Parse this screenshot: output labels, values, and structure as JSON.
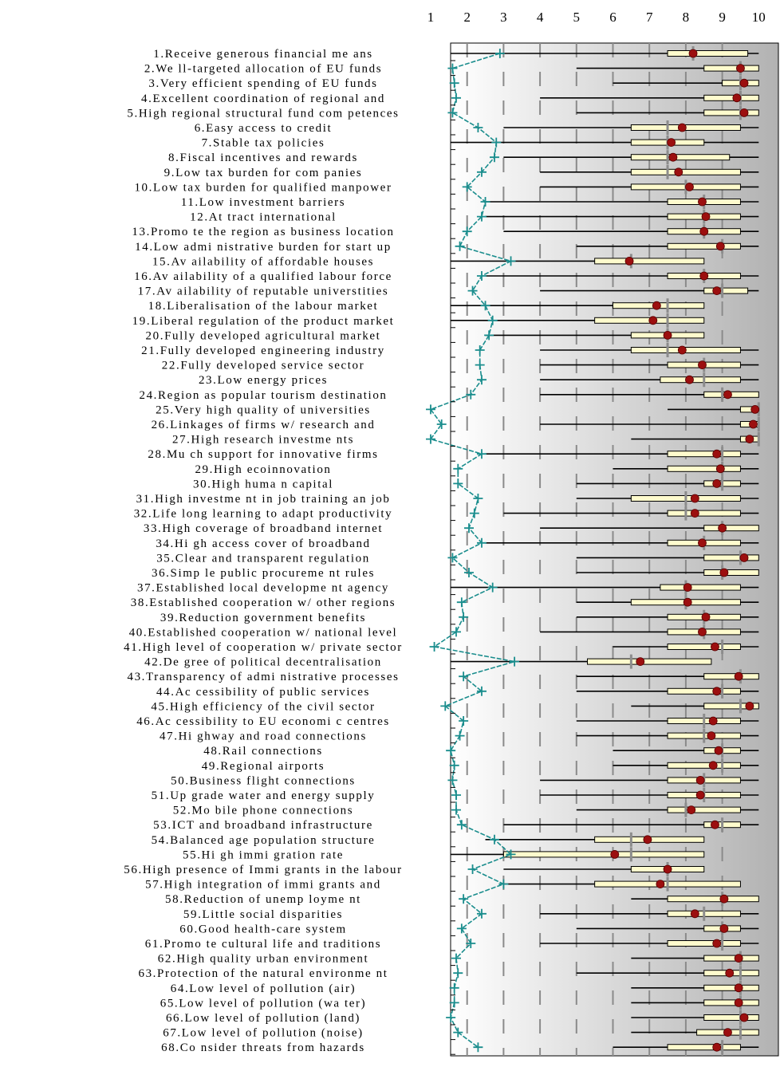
{
  "chart_data": {
    "type": "box",
    "x_ticks": [
      "1",
      "2",
      "3",
      "4",
      "5",
      "6",
      "7",
      "8",
      "9",
      "10"
    ],
    "xlim": [
      1,
      10
    ],
    "items": [
      {
        "label": "1.Receive generous financial me ans",
        "whisker": [
          1,
          10
        ],
        "box": [
          7.5,
          9.7
        ],
        "median": 8.2,
        "mean": 8.2,
        "plus": 2.9
      },
      {
        "label": "2.We ll-targeted allocation of EU funds",
        "whisker": [
          5,
          10
        ],
        "box": [
          8.5,
          10
        ],
        "median": 9.5,
        "mean": 9.5,
        "plus": 1.6
      },
      {
        "label": "3.Very efficient spending of EU funds",
        "whisker": [
          6,
          10
        ],
        "box": [
          9,
          10
        ],
        "median": 9.5,
        "mean": 9.6,
        "plus": 1.65
      },
      {
        "label": "4.Excellent coordination of regional and",
        "whisker": [
          4,
          10
        ],
        "box": [
          8.5,
          10
        ],
        "median": 9.5,
        "mean": 9.4,
        "plus": 1.7
      },
      {
        "label": "5.High regional structural fund com petences",
        "whisker": [
          5,
          10
        ],
        "box": [
          8.5,
          10
        ],
        "median": 9.5,
        "mean": 9.6,
        "plus": 1.6
      },
      {
        "label": "6.Easy access to credit",
        "whisker": [
          3,
          10
        ],
        "box": [
          6.5,
          9.5
        ],
        "median": 7.5,
        "mean": 7.9,
        "plus": 2.3
      },
      {
        "label": "7.Stable tax policies",
        "whisker": [
          1,
          10
        ],
        "box": [
          6.5,
          8.5
        ],
        "median": 7.5,
        "mean": 7.6,
        "plus": 2.8
      },
      {
        "label": "8.Fiscal incentives and rewards",
        "whisker": [
          3,
          10
        ],
        "box": [
          6.5,
          9.2
        ],
        "median": 7.5,
        "mean": 7.65,
        "plus": 2.75
      },
      {
        "label": "9.Low tax burden for com panies",
        "whisker": [
          4,
          10
        ],
        "box": [
          6.5,
          9.5
        ],
        "median": 7.5,
        "mean": 7.8,
        "plus": 2.4
      },
      {
        "label": "10.Low tax burden for qualified manpower",
        "whisker": [
          4,
          10
        ],
        "box": [
          6.5,
          9.5
        ],
        "median": 8,
        "mean": 8.1,
        "plus": 2
      },
      {
        "label": "11.Low investment barriers",
        "whisker": [
          2.5,
          10
        ],
        "box": [
          7.5,
          9.5
        ],
        "median": 8.5,
        "mean": 8.45,
        "plus": 2.5
      },
      {
        "label": "12.At tract international",
        "whisker": [
          2.5,
          10
        ],
        "box": [
          7.5,
          9.5
        ],
        "median": 8.5,
        "mean": 8.55,
        "plus": 2.4
      },
      {
        "label": "13.Promo te the region as business location",
        "whisker": [
          3,
          10
        ],
        "box": [
          7.5,
          9.5
        ],
        "median": 8.5,
        "mean": 8.5,
        "plus": 2
      },
      {
        "label": "14.Low admi nistrative burden for start up",
        "whisker": [
          5,
          10
        ],
        "box": [
          7.5,
          9.5
        ],
        "median": 9,
        "mean": 8.95,
        "plus": 1.8
      },
      {
        "label": "15.Av ailability of affordable houses",
        "whisker": [
          1,
          8.5
        ],
        "box": [
          5.5,
          8.5
        ],
        "median": 6.5,
        "mean": 6.45,
        "plus": 3.2
      },
      {
        "label": "16.Av ailability of a qualified labour force",
        "whisker": [
          2.5,
          10
        ],
        "box": [
          7.5,
          9.5
        ],
        "median": 8.5,
        "mean": 8.5,
        "plus": 2.4
      },
      {
        "label": "17.Av ailability of reputable universtities",
        "whisker": [
          4,
          10
        ],
        "box": [
          8.5,
          9.7
        ],
        "median": 9,
        "mean": 8.85,
        "plus": 2.15
      },
      {
        "label": "18.Liberalisation of the labour market",
        "whisker": [
          1,
          8.5
        ],
        "box": [
          6,
          8.5
        ],
        "median": 7.5,
        "mean": 7.2,
        "plus": 2.5
      },
      {
        "label": "19.Liberal regulation of the product market",
        "whisker": [
          1,
          8.5
        ],
        "box": [
          5.5,
          8.5
        ],
        "median": 7.5,
        "mean": 7.1,
        "plus": 2.7
      },
      {
        "label": "20.Fully developed agricultural market",
        "whisker": [
          2.5,
          8.5
        ],
        "box": [
          6.5,
          8.5
        ],
        "median": 7.5,
        "mean": 7.5,
        "plus": 2.6
      },
      {
        "label": "21.Fully developed engineering industry",
        "whisker": [
          4,
          10
        ],
        "box": [
          6.5,
          9.5
        ],
        "median": 7.5,
        "mean": 7.9,
        "plus": 2.35
      },
      {
        "label": "22.Fully developed service sector",
        "whisker": [
          4,
          10
        ],
        "box": [
          7.5,
          9.5
        ],
        "median": 8.5,
        "mean": 8.45,
        "plus": 2.35
      },
      {
        "label": "23.Low energy prices",
        "whisker": [
          4,
          10
        ],
        "box": [
          7.3,
          9.5
        ],
        "median": 8.5,
        "mean": 8.1,
        "plus": 2.4
      },
      {
        "label": "24.Region as popular tourism destination",
        "whisker": [
          4,
          10
        ],
        "box": [
          8.5,
          10
        ],
        "median": 9,
        "mean": 9.15,
        "plus": 2.1
      },
      {
        "label": "25.Very high quality of universities",
        "whisker": [
          7.5,
          10
        ],
        "box": [
          9.5,
          10
        ],
        "median": 10,
        "mean": 9.9,
        "plus": 1
      },
      {
        "label": "26.Linkages of firms w/ research and",
        "whisker": [
          4,
          10
        ],
        "box": [
          9.5,
          10
        ],
        "median": 10,
        "mean": 9.85,
        "plus": 1.3
      },
      {
        "label": "27.High research investme nts",
        "whisker": [
          6.5,
          10
        ],
        "box": [
          9.5,
          10
        ],
        "median": 10,
        "mean": 9.75,
        "plus": 1
      },
      {
        "label": "28.Mu ch support for innovative firms",
        "whisker": [
          2.5,
          10
        ],
        "box": [
          7.5,
          9.5
        ],
        "median": 9,
        "mean": 8.85,
        "plus": 2.4
      },
      {
        "label": "29.High ecoinnovation",
        "whisker": [
          6,
          10
        ],
        "box": [
          7.5,
          9.5
        ],
        "median": 9,
        "mean": 8.95,
        "plus": 1.75
      },
      {
        "label": "30.High huma n capital",
        "whisker": [
          5,
          10
        ],
        "box": [
          8.5,
          9.5
        ],
        "median": 9,
        "mean": 8.85,
        "plus": 1.75
      },
      {
        "label": "31.High investme nt in job training an job",
        "whisker": [
          5,
          10
        ],
        "box": [
          6.5,
          9.5
        ],
        "median": 8,
        "mean": 8.25,
        "plus": 2.3
      },
      {
        "label": "32.Life long learning to adapt productivity",
        "whisker": [
          3,
          10
        ],
        "box": [
          7.5,
          9.5
        ],
        "median": 8,
        "mean": 8.25,
        "plus": 2.2
      },
      {
        "label": "33.High coverage of broadband internet",
        "whisker": [
          4,
          10
        ],
        "box": [
          8.5,
          10
        ],
        "median": 9,
        "mean": 9,
        "plus": 2.05
      },
      {
        "label": "34.Hi gh access cover of broadband",
        "whisker": [
          2.5,
          10
        ],
        "box": [
          7.5,
          9.5
        ],
        "median": 8.5,
        "mean": 8.45,
        "plus": 2.4
      },
      {
        "label": "35.Clear and transparent regulation",
        "whisker": [
          5,
          10
        ],
        "box": [
          8.5,
          10
        ],
        "median": 9.5,
        "mean": 9.6,
        "plus": 1.6
      },
      {
        "label": "36.Simp le public procureme nt rules",
        "whisker": [
          5,
          10
        ],
        "box": [
          8.5,
          10
        ],
        "median": 9,
        "mean": 9.05,
        "plus": 2.05
      },
      {
        "label": "37.Established local developme nt agency",
        "whisker": [
          1,
          10
        ],
        "box": [
          7.3,
          9.5
        ],
        "median": 8,
        "mean": 8.05,
        "plus": 2.7
      },
      {
        "label": "38.Established cooperation w/ other regions",
        "whisker": [
          5,
          10
        ],
        "box": [
          6.5,
          9.5
        ],
        "median": 8,
        "mean": 8.05,
        "plus": 1.85
      },
      {
        "label": "39.Reduction government benefits",
        "whisker": [
          5,
          10
        ],
        "box": [
          7.5,
          9.5
        ],
        "median": 8.5,
        "mean": 8.55,
        "plus": 1.9
      },
      {
        "label": "40.Established cooperation w/ national level",
        "whisker": [
          4,
          10
        ],
        "box": [
          7.5,
          9.5
        ],
        "median": 8.5,
        "mean": 8.45,
        "plus": 1.7
      },
      {
        "label": "41.High level of cooperation w/ private sector",
        "whisker": [
          6,
          10
        ],
        "box": [
          7.5,
          9.5
        ],
        "median": 9,
        "mean": 8.8,
        "plus": 1.1
      },
      {
        "label": "42.De gree of political decentralisation",
        "whisker": [
          1,
          8.7
        ],
        "box": [
          5.3,
          8.7
        ],
        "median": 6.5,
        "mean": 6.75,
        "plus": 3.3
      },
      {
        "label": "43.Transparency of admi nistrative processes",
        "whisker": [
          5,
          10
        ],
        "box": [
          8.5,
          10
        ],
        "median": 9.5,
        "mean": 9.45,
        "plus": 1.9
      },
      {
        "label": "44.Ac cessibility of public services",
        "whisker": [
          5,
          10
        ],
        "box": [
          7.5,
          9.5
        ],
        "median": 9,
        "mean": 8.85,
        "plus": 2.4
      },
      {
        "label": "45.High efficiency of the civil sector",
        "whisker": [
          6.5,
          10
        ],
        "box": [
          8.5,
          10
        ],
        "median": 9.5,
        "mean": 9.75,
        "plus": 1.4
      },
      {
        "label": "46.Ac cessibility to EU economi c centres",
        "whisker": [
          5,
          10
        ],
        "box": [
          7.5,
          9.5
        ],
        "median": 8.5,
        "mean": 8.75,
        "plus": 1.9
      },
      {
        "label": "47.Hi ghway and road connections",
        "whisker": [
          5,
          10
        ],
        "box": [
          7.5,
          9.5
        ],
        "median": 8.5,
        "mean": 8.7,
        "plus": 1.8
      },
      {
        "label": "48.Rail connections",
        "whisker": [
          6,
          10
        ],
        "box": [
          8.5,
          9.5
        ],
        "median": 9,
        "mean": 8.9,
        "plus": 1.55
      },
      {
        "label": "49.Regional airports",
        "whisker": [
          6,
          10
        ],
        "box": [
          7.5,
          9.5
        ],
        "median": 9,
        "mean": 8.75,
        "plus": 1.65
      },
      {
        "label": "50.Business flight connections",
        "whisker": [
          4,
          10
        ],
        "box": [
          7.5,
          9.5
        ],
        "median": 8.5,
        "mean": 8.4,
        "plus": 1.6
      },
      {
        "label": "51.Up grade water and energy supply",
        "whisker": [
          4,
          10
        ],
        "box": [
          7.5,
          9.5
        ],
        "median": 8.5,
        "mean": 8.4,
        "plus": 1.7
      },
      {
        "label": "52.Mo bile phone connections",
        "whisker": [
          5,
          10
        ],
        "box": [
          7.5,
          9.5
        ],
        "median": 8,
        "mean": 8.15,
        "plus": 1.7
      },
      {
        "label": "53.ICT and broadband infrastructure",
        "whisker": [
          3,
          10
        ],
        "box": [
          8.5,
          9.5
        ],
        "median": 9,
        "mean": 8.8,
        "plus": 1.85
      },
      {
        "label": "54.Balanced age population structure",
        "whisker": [
          2.5,
          8.5
        ],
        "box": [
          5.5,
          8.5
        ],
        "median": 6.5,
        "mean": 6.95,
        "plus": 2.75
      },
      {
        "label": "55.Hi gh immi gration rate",
        "whisker": [
          1,
          8.5
        ],
        "box": [
          3,
          8.5
        ],
        "median": 6.5,
        "mean": 6.05,
        "plus": 3.2
      },
      {
        "label": "56.High presence of Immi grants in the labour",
        "whisker": [
          3,
          8.5
        ],
        "box": [
          6.5,
          8.5
        ],
        "median": 7.5,
        "mean": 7.5,
        "plus": 2.15
      },
      {
        "label": "57.High integration of immi grants and",
        "whisker": [
          3,
          9.5
        ],
        "box": [
          5.5,
          9.5
        ],
        "median": 7.5,
        "mean": 7.3,
        "plus": 3
      },
      {
        "label": "58.Reduction of unemp loyme nt",
        "whisker": [
          6.5,
          10
        ],
        "box": [
          7.5,
          10
        ],
        "median": 9,
        "mean": 9.05,
        "plus": 1.9
      },
      {
        "label": "59.Little social disparities",
        "whisker": [
          4,
          10
        ],
        "box": [
          7.5,
          9.5
        ],
        "median": 8.5,
        "mean": 8.25,
        "plus": 2.4
      },
      {
        "label": "60.Good health-care system",
        "whisker": [
          5,
          10
        ],
        "box": [
          8.5,
          9.5
        ],
        "median": 9,
        "mean": 9.05,
        "plus": 1.85
      },
      {
        "label": "61.Promo te cultural life and traditions",
        "whisker": [
          4,
          10
        ],
        "box": [
          7.5,
          9.5
        ],
        "median": 9,
        "mean": 8.85,
        "plus": 2.1
      },
      {
        "label": "62.High quality urban environment",
        "whisker": [
          6.5,
          10
        ],
        "box": [
          8.5,
          10
        ],
        "median": 9.5,
        "mean": 9.45,
        "plus": 1.7
      },
      {
        "label": "63.Protection of the natural environme nt",
        "whisker": [
          5,
          10
        ],
        "box": [
          8.5,
          10
        ],
        "median": 9.5,
        "mean": 9.2,
        "plus": 1.75
      },
      {
        "label": "64.Low level of pollution (air)",
        "whisker": [
          6.5,
          10
        ],
        "box": [
          8.5,
          10
        ],
        "median": 9.5,
        "mean": 9.45,
        "plus": 1.65
      },
      {
        "label": "65.Low level of pollution (wa ter)",
        "whisker": [
          6.5,
          10
        ],
        "box": [
          8.5,
          10
        ],
        "median": 9.5,
        "mean": 9.45,
        "plus": 1.65
      },
      {
        "label": "66.Low level of pollution (land)",
        "whisker": [
          6.5,
          10
        ],
        "box": [
          8.5,
          10
        ],
        "median": 9.5,
        "mean": 9.6,
        "plus": 1.55
      },
      {
        "label": "67.Low level of pollution (noise)",
        "whisker": [
          6.5,
          10
        ],
        "box": [
          8.3,
          10
        ],
        "median": 9.5,
        "mean": 9.15,
        "plus": 1.75
      },
      {
        "label": "68.Co nsider threats from hazards",
        "whisker": [
          6,
          10
        ],
        "box": [
          7.5,
          9.5
        ],
        "median": 9,
        "mean": 8.85,
        "plus": 2.3
      }
    ],
    "colors": {
      "box_fill": "#fefbcd",
      "mean_dot": "#9c0f0f",
      "line": "#1a8d8d",
      "median": "#8c8c8c",
      "whisker": "#000000"
    },
    "grid": true
  }
}
